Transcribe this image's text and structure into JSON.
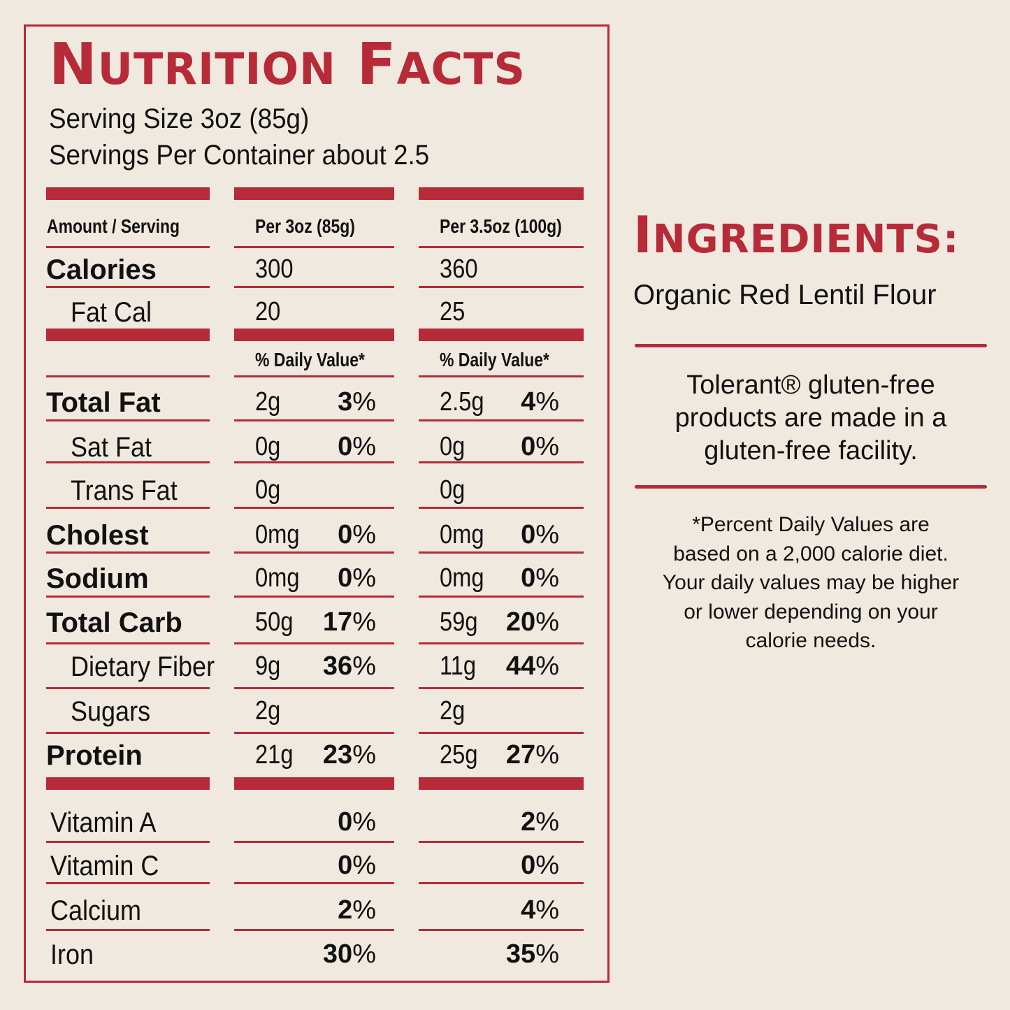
{
  "title": "Nutrition Facts",
  "serving_size": "Serving Size 3oz (85g)",
  "servings_per_container": "Servings Per Container about 2.5",
  "header": {
    "amount_label": "Amount / Serving",
    "col1": "Per 3oz (85g)",
    "col2": "Per 3.5oz (100g)",
    "dv1": "% Daily Value*",
    "dv2": "% Daily Value*"
  },
  "calories": {
    "label": "Calories",
    "v1": "300",
    "v2": "360"
  },
  "fat_cal": {
    "label": "Fat Cal",
    "v1": "20",
    "v2": "25"
  },
  "rows": [
    {
      "label": "Total Fat",
      "v1": "2g",
      "p1": "3",
      "v2": "2.5g",
      "p2": "4"
    },
    {
      "label": "Sat Fat",
      "v1": "0g",
      "p1": "0",
      "v2": "0g",
      "p2": "0"
    },
    {
      "label": "Trans Fat",
      "v1": "0g",
      "p1": "",
      "v2": "0g",
      "p2": ""
    },
    {
      "label": "Cholest",
      "v1": "0mg",
      "p1": "0",
      "v2": "0mg",
      "p2": "0"
    },
    {
      "label": "Sodium",
      "v1": "0mg",
      "p1": "0",
      "v2": "0mg",
      "p2": "0"
    },
    {
      "label": "Total Carb",
      "v1": "50g",
      "p1": "17",
      "v2": "59g",
      "p2": "20"
    },
    {
      "label": "Dietary Fiber",
      "v1": "9g",
      "p1": "36",
      "v2": "11g",
      "p2": "44"
    },
    {
      "label": "Sugars",
      "v1": "2g",
      "p1": "",
      "v2": "2g",
      "p2": ""
    },
    {
      "label": "Protein",
      "v1": "21g",
      "p1": "23",
      "v2": "25g",
      "p2": "27"
    }
  ],
  "vitamins": [
    {
      "label": "Vitamin A",
      "p1": "0",
      "p2": "2"
    },
    {
      "label": "Vitamin C",
      "p1": "0",
      "p2": "0"
    },
    {
      "label": "Calcium",
      "p1": "2",
      "p2": "4"
    },
    {
      "label": "Iron",
      "p1": "30",
      "p2": "35"
    }
  ],
  "percent_sign": "%",
  "ingredients": {
    "title": "Ingredients:",
    "text": "Organic Red Lentil Flour"
  },
  "gluten_note": {
    "line1": "Tolerant® gluten-free",
    "line2": "products are made in a",
    "line3": "gluten-free facility."
  },
  "dv_note": {
    "line1": "*Percent Daily Values are",
    "line2": "based on  a 2,000 calorie diet.",
    "line3": "Your daily values may be higher",
    "line4": "or lower depending on your",
    "line5": "calorie needs."
  },
  "colors": {
    "accent": "#b72a38",
    "background": "#f0e9df",
    "text": "#111111"
  }
}
